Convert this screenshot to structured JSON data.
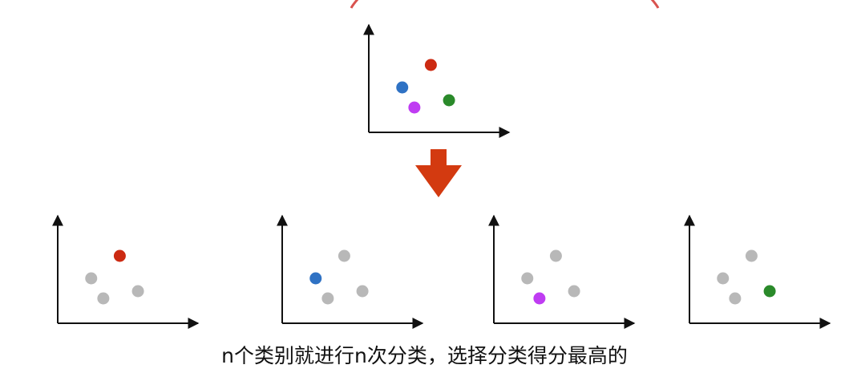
{
  "caption": "n个类别就进行n次分类，选择分类得分最高的",
  "colors": {
    "axis": "#111111",
    "inactive": "#b8b8b8",
    "arrow": "#d33a10",
    "bracket": "#d9534f",
    "red": "#cc2a12",
    "blue": "#2f72c4",
    "purple": "#bf3cf2",
    "green": "#2a8a2a"
  },
  "points": [
    {
      "name": "red",
      "x": 0.55,
      "y": 0.8
    },
    {
      "name": "blue",
      "x": 0.22,
      "y": 0.52
    },
    {
      "name": "purple",
      "x": 0.36,
      "y": 0.27
    },
    {
      "name": "green",
      "x": 0.76,
      "y": 0.36
    }
  ],
  "panels": [
    {
      "highlight": "red"
    },
    {
      "highlight": "blue"
    },
    {
      "highlight": "purple"
    },
    {
      "highlight": "green"
    }
  ]
}
